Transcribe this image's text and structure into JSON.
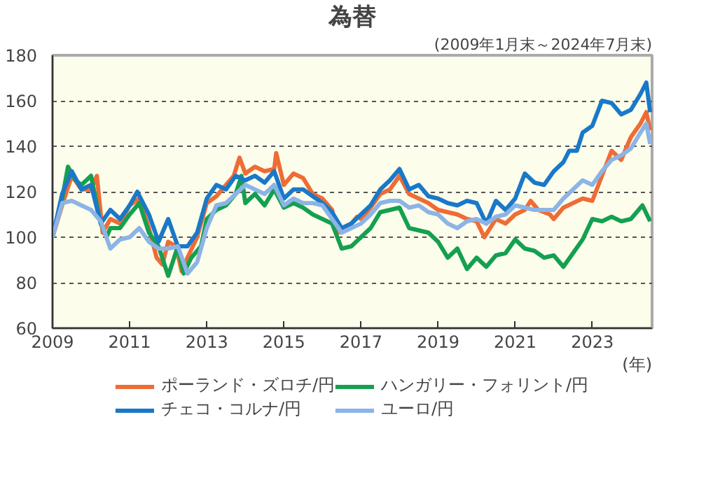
{
  "chart_data": {
    "type": "line",
    "title": "為替",
    "subtitle": "(2009年1月末～2024年7月末)",
    "xlabel": "(年)",
    "xlim": [
      2009,
      2024.55
    ],
    "xticks": [
      2009,
      2011,
      2013,
      2015,
      2017,
      2019,
      2021,
      2023
    ],
    "ylim": [
      60,
      180
    ],
    "yticks": [
      60,
      80,
      100,
      120,
      140,
      160,
      180
    ],
    "grid": "y",
    "legend": "bottom",
    "line_style": "solid",
    "marker": "none",
    "series": [
      {
        "name": "ポーランド・ズロチ/円",
        "color": "#ee6c35",
        "x": [
          2009,
          2009.25,
          2009.5,
          2009.75,
          2010,
          2010.15,
          2010.3,
          2010.5,
          2010.75,
          2011,
          2011.25,
          2011.5,
          2011.7,
          2011.85,
          2012,
          2012.2,
          2012.35,
          2012.5,
          2012.75,
          2013,
          2013.25,
          2013.4,
          2013.5,
          2013.7,
          2013.85,
          2014,
          2014.25,
          2014.5,
          2014.75,
          2014.8,
          2015,
          2015.25,
          2015.5,
          2015.75,
          2016,
          2016.25,
          2016.4,
          2016.6,
          2016.9,
          2017,
          2017.25,
          2017.5,
          2017.75,
          2018,
          2018.25,
          2018.5,
          2018.75,
          2019,
          2019.25,
          2019.5,
          2019.75,
          2020,
          2020.2,
          2020.5,
          2020.75,
          2021,
          2021.25,
          2021.4,
          2021.6,
          2021.9,
          2022,
          2022.25,
          2022.5,
          2022.75,
          2023,
          2023.25,
          2023.5,
          2023.75,
          2024,
          2024.25,
          2024.4,
          2024.5
        ],
        "values": [
          100,
          114,
          127,
          121,
          121,
          127,
          102,
          108,
          106,
          114,
          117,
          104,
          91,
          88,
          98,
          96,
          85,
          91,
          100,
          115,
          118,
          121,
          123,
          127,
          135,
          128,
          131,
          129,
          130,
          137,
          123,
          128,
          126,
          119,
          117,
          112,
          102,
          103,
          109,
          108,
          113,
          119,
          121,
          127,
          119,
          117,
          115,
          112,
          111,
          110,
          108,
          107,
          100,
          108,
          106,
          110,
          112,
          116,
          112,
          110,
          108,
          113,
          115,
          117,
          116,
          127,
          138,
          134,
          144,
          150,
          155,
          147
        ]
      },
      {
        "name": "ハンガリー・フォリント/円",
        "color": "#14a050",
        "x": [
          2009,
          2009.25,
          2009.4,
          2009.6,
          2009.75,
          2010,
          2010.25,
          2010.4,
          2010.5,
          2010.75,
          2011,
          2011.25,
          2011.5,
          2011.75,
          2012,
          2012.25,
          2012.4,
          2012.6,
          2012.85,
          2013,
          2013.25,
          2013.5,
          2013.75,
          2013.9,
          2014,
          2014.25,
          2014.5,
          2014.75,
          2015,
          2015.25,
          2015.5,
          2015.75,
          2016,
          2016.25,
          2016.5,
          2016.75,
          2017,
          2017.25,
          2017.5,
          2017.75,
          2018,
          2018.25,
          2018.5,
          2018.75,
          2019,
          2019.25,
          2019.5,
          2019.75,
          2020,
          2020.25,
          2020.5,
          2020.75,
          2021,
          2021.25,
          2021.5,
          2021.75,
          2022,
          2022.25,
          2022.5,
          2022.75,
          2023,
          2023.25,
          2023.5,
          2023.75,
          2024,
          2024.3,
          2024.5
        ],
        "values": [
          100,
          117,
          131,
          125,
          123,
          127,
          106,
          100,
          104,
          104,
          110,
          115,
          102,
          96,
          83,
          96,
          84,
          91,
          96,
          108,
          112,
          114,
          119,
          127,
          115,
          119,
          114,
          121,
          113,
          115,
          113,
          110,
          108,
          106,
          95,
          96,
          100,
          104,
          111,
          112,
          113,
          104,
          103,
          102,
          98,
          91,
          95,
          86,
          91,
          87,
          92,
          93,
          99,
          95,
          94,
          91,
          92,
          87,
          93,
          99,
          108,
          107,
          109,
          107,
          108,
          114,
          107
        ]
      },
      {
        "name": "チェコ・コルナ/円",
        "color": "#1a78c8",
        "x": [
          2009,
          2009.25,
          2009.5,
          2009.75,
          2010,
          2010.25,
          2010.5,
          2010.75,
          2011,
          2011.2,
          2011.5,
          2011.75,
          2012,
          2012.25,
          2012.5,
          2012.75,
          2013,
          2013.25,
          2013.5,
          2013.75,
          2014,
          2014.25,
          2014.5,
          2014.75,
          2015,
          2015.25,
          2015.5,
          2015.75,
          2016,
          2016.25,
          2016.5,
          2016.75,
          2017,
          2017.25,
          2017.5,
          2017.75,
          2018,
          2018.25,
          2018.5,
          2018.75,
          2019,
          2019.25,
          2019.5,
          2019.75,
          2020,
          2020.25,
          2020.5,
          2020.75,
          2021,
          2021.25,
          2021.5,
          2021.75,
          2022,
          2022.25,
          2022.4,
          2022.6,
          2022.75,
          2023,
          2023.25,
          2023.5,
          2023.75,
          2024,
          2024.25,
          2024.4,
          2024.5
        ],
        "values": [
          100,
          119,
          129,
          121,
          123,
          106,
          112,
          108,
          114,
          120,
          110,
          98,
          108,
          96,
          96,
          102,
          117,
          123,
          121,
          127,
          125,
          127,
          124,
          129,
          117,
          121,
          121,
          118,
          115,
          111,
          104,
          106,
          110,
          114,
          121,
          125,
          130,
          121,
          123,
          118,
          117,
          115,
          114,
          116,
          115,
          106,
          116,
          112,
          117,
          128,
          124,
          123,
          129,
          133,
          138,
          138,
          146,
          149,
          160,
          159,
          154,
          156,
          163,
          168,
          155
        ]
      },
      {
        "name": "ユーロ/円",
        "color": "#8cb4e6",
        "x": [
          2009,
          2009.25,
          2009.5,
          2009.75,
          2010,
          2010.25,
          2010.5,
          2010.75,
          2011,
          2011.25,
          2011.5,
          2011.75,
          2012,
          2012.25,
          2012.5,
          2012.75,
          2013,
          2013.25,
          2013.5,
          2013.75,
          2014,
          2014.25,
          2014.5,
          2014.75,
          2015,
          2015.25,
          2015.5,
          2015.75,
          2016,
          2016.25,
          2016.5,
          2016.75,
          2017,
          2017.25,
          2017.5,
          2017.75,
          2018,
          2018.25,
          2018.5,
          2018.75,
          2019,
          2019.25,
          2019.5,
          2019.75,
          2020,
          2020.25,
          2020.5,
          2020.75,
          2021,
          2021.25,
          2021.5,
          2021.75,
          2022,
          2022.25,
          2022.5,
          2022.75,
          2023,
          2023.25,
          2023.5,
          2023.75,
          2024,
          2024.25,
          2024.4,
          2024.5
        ],
        "values": [
          100,
          115,
          116,
          114,
          112,
          107,
          95,
          99,
          100,
          104,
          98,
          95,
          95,
          96,
          84,
          89,
          104,
          114,
          115,
          119,
          123,
          121,
          119,
          123,
          114,
          117,
          115,
          115,
          114,
          108,
          102,
          104,
          106,
          110,
          115,
          116,
          116,
          113,
          114,
          111,
          110,
          106,
          104,
          107,
          108,
          106,
          109,
          110,
          114,
          113,
          112,
          112,
          112,
          117,
          121,
          125,
          123,
          129,
          134,
          136,
          139,
          146,
          150,
          141
        ]
      }
    ]
  }
}
